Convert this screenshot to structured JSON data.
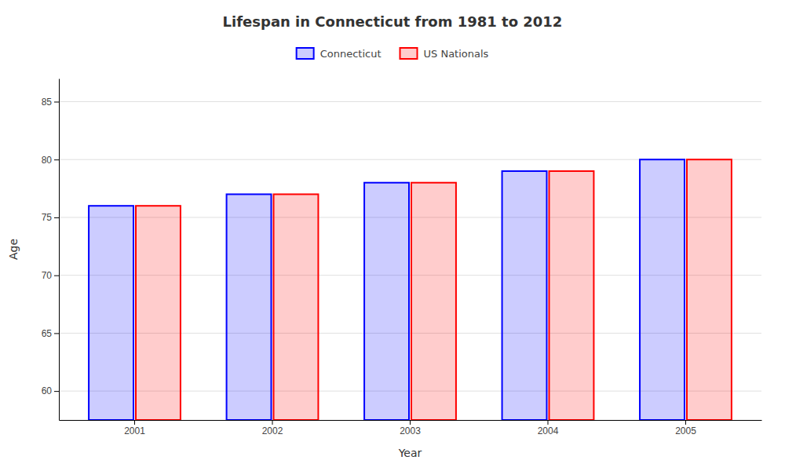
{
  "chart_data": {
    "type": "bar",
    "title": "Lifespan in Connecticut from 1981 to 2012",
    "xlabel": "Year",
    "ylabel": "Age",
    "categories": [
      "2001",
      "2002",
      "2003",
      "2004",
      "2005"
    ],
    "series": [
      {
        "name": "Connecticut",
        "color": "#0000ff",
        "values": [
          76,
          77,
          78,
          79,
          80
        ]
      },
      {
        "name": "US Nationals",
        "color": "#ff0000",
        "values": [
          76,
          77,
          78,
          79,
          80
        ]
      }
    ],
    "ylim": [
      57.5,
      87
    ],
    "yticks": [
      60,
      65,
      70,
      75,
      80,
      85
    ],
    "grid": true,
    "legend": "top"
  }
}
